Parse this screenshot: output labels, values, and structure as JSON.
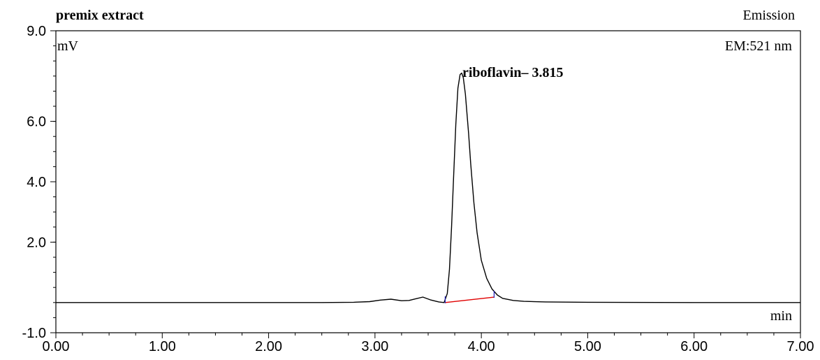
{
  "chart_data": {
    "type": "line",
    "title": "premix extract",
    "top_right_label": "Emission",
    "detector_label": "EM:521 nm",
    "ylabel": "mV",
    "xlabel": "min",
    "xlim": [
      0,
      7
    ],
    "ylim": [
      -1.0,
      9.0
    ],
    "x_tick_labels": [
      "0.00",
      "1.00",
      "2.00",
      "3.00",
      "4.00",
      "5.00",
      "6.00",
      "7.00"
    ],
    "x_tick_values": [
      0,
      1,
      2,
      3,
      4,
      5,
      6,
      7
    ],
    "y_tick_labels": [
      "-1.0",
      "2.0",
      "4.0",
      "6.0",
      "9.0"
    ],
    "y_tick_values": [
      -1.0,
      2.0,
      4.0,
      6.0,
      9.0
    ],
    "peak": {
      "name": "riboflavin",
      "retention_time": 3.815,
      "label": "riboflavin– 3.815",
      "height": 7.6
    },
    "series": [
      {
        "x": [
          0.0,
          0.5,
          1.0,
          1.5,
          2.0,
          2.5,
          2.8,
          2.95,
          3.05,
          3.15,
          3.25,
          3.32,
          3.38,
          3.45,
          3.52,
          3.6,
          3.65,
          3.68,
          3.7,
          3.72,
          3.74,
          3.76,
          3.78,
          3.8,
          3.815,
          3.83,
          3.85,
          3.88,
          3.9,
          3.93,
          3.96,
          4.0,
          4.05,
          4.1,
          4.15,
          4.2,
          4.3,
          4.4,
          4.6,
          5.0,
          6.0,
          7.0
        ],
        "y": [
          0.0,
          0.0,
          0.0,
          0.0,
          0.0,
          0.0,
          0.01,
          0.03,
          0.08,
          0.11,
          0.06,
          0.07,
          0.12,
          0.18,
          0.09,
          0.02,
          0.0,
          0.3,
          1.1,
          2.5,
          4.2,
          5.9,
          7.1,
          7.55,
          7.6,
          7.45,
          6.9,
          5.6,
          4.6,
          3.3,
          2.3,
          1.4,
          0.8,
          0.45,
          0.25,
          0.14,
          0.07,
          0.04,
          0.02,
          0.01,
          0.0,
          0.0
        ],
        "color": "#000000"
      }
    ],
    "baseline": {
      "x": [
        3.66,
        4.12
      ],
      "y": [
        0.0,
        0.18
      ],
      "color": "#e00000"
    },
    "integration_markers": {
      "x": [
        3.66,
        4.12
      ],
      "color": "#2020c0"
    },
    "grid": false,
    "legend": "none"
  }
}
